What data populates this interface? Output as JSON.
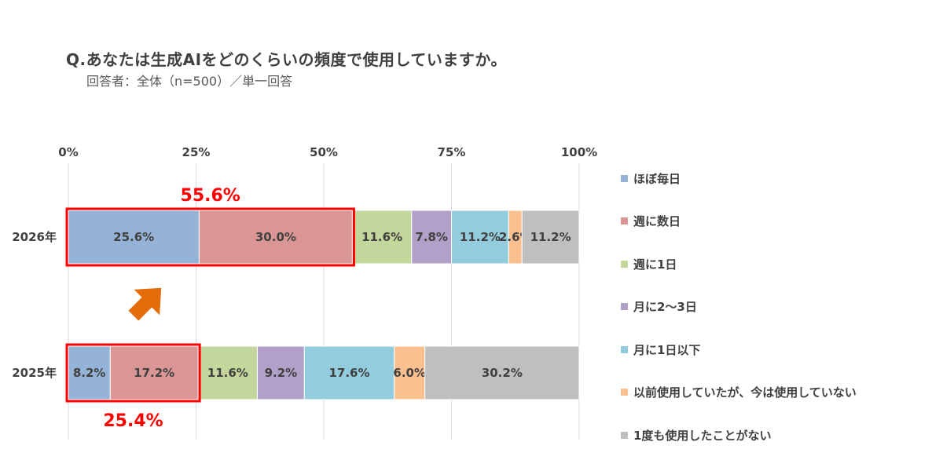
{
  "header": {
    "title": "Q.あなたは生成AIをどのくらいの頻度で使用していますか。",
    "subtitle": "回答者：全体（n=500）／単一回答"
  },
  "chart_data": {
    "type": "bar",
    "orientation": "horizontal-stacked-100",
    "xlim": [
      0,
      100
    ],
    "x_ticks": [
      "0%",
      "25%",
      "50%",
      "75%",
      "100%"
    ],
    "grid": true,
    "legend_position": "right",
    "categories": [
      "2026年",
      "2025年"
    ],
    "series": [
      {
        "name": "ほぼ毎日",
        "color": "#95b3d7",
        "values": [
          25.6,
          8.2
        ],
        "labels": [
          "25.6%",
          "8.2%"
        ]
      },
      {
        "name": "週に数日",
        "color": "#d99694",
        "values": [
          30.0,
          17.2
        ],
        "labels": [
          "30.0%",
          "17.2%"
        ]
      },
      {
        "name": "週に1日",
        "color": "#c3d69b",
        "values": [
          11.6,
          11.6
        ],
        "labels": [
          "11.6%",
          "11.6%"
        ]
      },
      {
        "name": "月に2～3日",
        "color": "#b1a0c7",
        "values": [
          7.8,
          9.2
        ],
        "labels": [
          "7.8%",
          "9.2%"
        ]
      },
      {
        "name": "月に1日以下",
        "color": "#93cddd",
        "values": [
          11.2,
          17.6
        ],
        "labels": [
          "11.2%",
          "17.6%"
        ]
      },
      {
        "name": "以前使用していたが、今は使用していない",
        "color": "#fac090",
        "values": [
          2.6,
          6.0
        ],
        "labels": [
          "2.6%",
          "6.0%"
        ]
      },
      {
        "name": "1度も使用したことがない",
        "color": "#bfbfbf",
        "values": [
          11.2,
          30.2
        ],
        "labels": [
          "11.2%",
          "30.2%"
        ]
      }
    ],
    "annotations": [
      {
        "text": "55.6%",
        "category": "2026年",
        "sum_of": [
          "ほぼ毎日",
          "週に数日"
        ],
        "value": 55.6,
        "position": "above"
      },
      {
        "text": "25.4%",
        "category": "2025年",
        "sum_of": [
          "ほぼ毎日",
          "週に数日"
        ],
        "value": 25.4,
        "position": "below"
      }
    ],
    "highlight_color": "#ff0000",
    "arrow_color": "#e46c0a"
  }
}
